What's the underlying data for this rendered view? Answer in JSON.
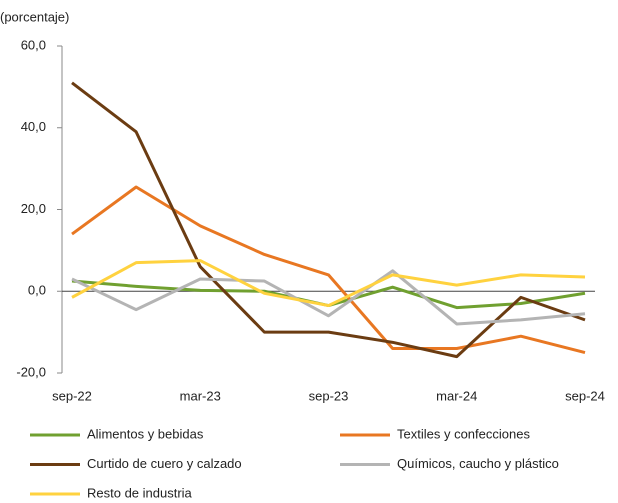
{
  "chart_data": {
    "type": "line",
    "y_label": "(porcentaje)",
    "categories": [
      "sep-22",
      null,
      "mar-23",
      null,
      "sep-23",
      null,
      "mar-24",
      null,
      "sep-24"
    ],
    "ylim": [
      -20,
      60
    ],
    "yticks": [
      {
        "value": -20,
        "label": "-20,0"
      },
      {
        "value": 0,
        "label": "0,0"
      },
      {
        "value": 20,
        "label": "20,0"
      },
      {
        "value": 40,
        "label": "40,0"
      },
      {
        "value": 60,
        "label": "60,0"
      }
    ],
    "series": [
      {
        "name": "Alimentos y bebidas",
        "color": "#70a030",
        "values": [
          2.5,
          1.2,
          0.2,
          0,
          -3.5,
          1,
          -4,
          -3,
          -0.5
        ]
      },
      {
        "name": "Textiles y confecciones",
        "color": "#e87722",
        "values": [
          14,
          25.5,
          16,
          9,
          4,
          -14,
          -14,
          -11,
          -15
        ]
      },
      {
        "name": "Curtido de cuero y calzado",
        "color": "#6b3c12",
        "values": [
          51,
          39,
          6,
          -10,
          -10,
          -12.5,
          -16,
          -1.5,
          -7
        ]
      },
      {
        "name": "Químicos, caucho y plástico",
        "color": "#b4b4b4",
        "values": [
          3,
          -4.5,
          3,
          2.5,
          -6,
          5,
          -8,
          -7,
          -5.5
        ]
      },
      {
        "name": "Resto de industria",
        "color": "#ffd23f",
        "values": [
          -1.5,
          7,
          7.5,
          -0.5,
          -3.5,
          4,
          1.5,
          4,
          3.5
        ]
      }
    ]
  }
}
